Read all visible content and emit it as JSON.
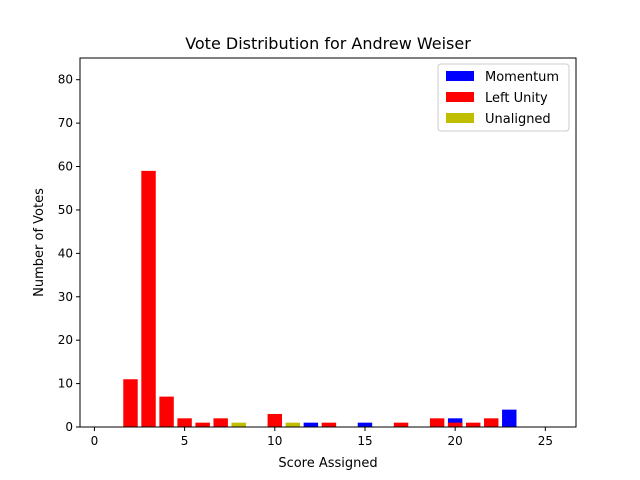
{
  "chart_data": {
    "type": "bar",
    "title": "Vote Distribution for Andrew Weiser",
    "xlabel": "Score Assigned",
    "ylabel": "Number of Votes",
    "xlim": [
      -0.8,
      26.7
    ],
    "ylim": [
      0,
      85
    ],
    "xticks": [
      0,
      5,
      10,
      15,
      20,
      25
    ],
    "yticks": [
      0,
      10,
      20,
      30,
      40,
      50,
      60,
      70,
      80
    ],
    "grid": false,
    "legend_position": "top-right",
    "series": [
      {
        "name": "Momentum",
        "color": "#0000ff",
        "points": [
          {
            "x": 12,
            "y": 1
          },
          {
            "x": 15,
            "y": 1
          },
          {
            "x": 20,
            "y": 2
          },
          {
            "x": 23,
            "y": 4
          }
        ]
      },
      {
        "name": "Left Unity",
        "color": "#ff0000",
        "points": [
          {
            "x": 2,
            "y": 11
          },
          {
            "x": 3,
            "y": 59
          },
          {
            "x": 4,
            "y": 7
          },
          {
            "x": 5,
            "y": 2
          },
          {
            "x": 6,
            "y": 1
          },
          {
            "x": 7,
            "y": 2
          },
          {
            "x": 10,
            "y": 3
          },
          {
            "x": 13,
            "y": 1
          },
          {
            "x": 17,
            "y": 1
          },
          {
            "x": 19,
            "y": 2
          },
          {
            "x": 20,
            "y": 1
          },
          {
            "x": 21,
            "y": 1
          },
          {
            "x": 22,
            "y": 2
          }
        ]
      },
      {
        "name": "Unaligned",
        "color": "#bfbf00",
        "points": [
          {
            "x": 8,
            "y": 1
          },
          {
            "x": 11,
            "y": 1
          }
        ]
      }
    ]
  }
}
